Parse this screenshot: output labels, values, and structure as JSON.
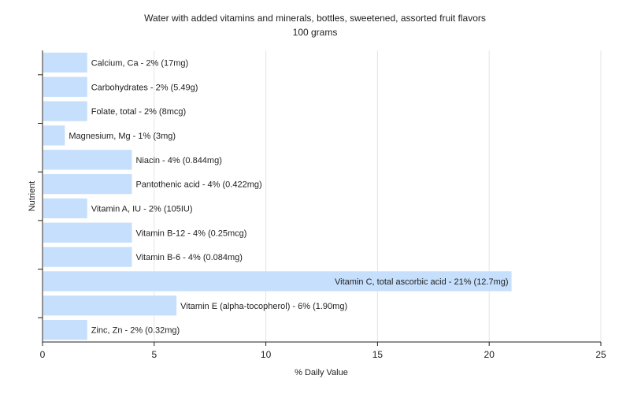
{
  "chart_data": {
    "type": "bar",
    "orientation": "horizontal",
    "title": "Water with added vitamins and minerals, bottles, sweetened, assorted fruit flavors",
    "subtitle": "100 grams",
    "xlabel": "% Daily Value",
    "ylabel": "Nutrient",
    "xlim": [
      0,
      25
    ],
    "xticks": [
      0,
      5,
      10,
      15,
      20,
      25
    ],
    "grid": true,
    "bar_color": "#c6dffc",
    "categories": [
      "Calcium, Ca",
      "Carbohydrates",
      "Folate, total",
      "Magnesium, Mg",
      "Niacin",
      "Pantothenic acid",
      "Vitamin A, IU",
      "Vitamin B-12",
      "Vitamin B-6",
      "Vitamin C, total ascorbic acid",
      "Vitamin E (alpha-tocopherol)",
      "Zinc, Zn"
    ],
    "values": [
      2,
      2,
      2,
      1,
      4,
      4,
      2,
      4,
      4,
      21,
      6,
      2
    ],
    "bar_labels": [
      "Calcium, Ca - 2% (17mg)",
      "Carbohydrates - 2% (5.49g)",
      "Folate, total - 2% (8mcg)",
      "Magnesium, Mg - 1% (3mg)",
      "Niacin - 4% (0.844mg)",
      "Pantothenic acid - 4% (0.422mg)",
      "Vitamin A, IU - 2% (105IU)",
      "Vitamin B-12 - 4% (0.25mcg)",
      "Vitamin B-6 - 4% (0.084mg)",
      "Vitamin C, total ascorbic acid - 21% (12.7mg)",
      "Vitamin E (alpha-tocopherol) - 6% (1.90mg)",
      "Zinc, Zn - 2% (0.32mg)"
    ]
  }
}
